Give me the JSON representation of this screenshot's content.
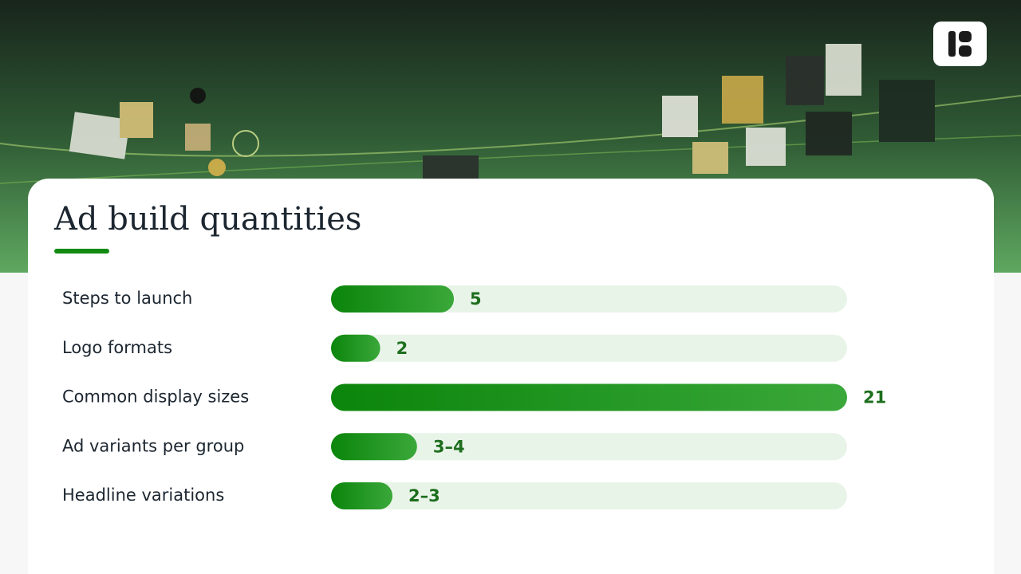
{
  "chart_data": {
    "type": "bar",
    "orientation": "horizontal",
    "title": "Ad build quantities",
    "categories": [
      "Steps to launch",
      "Logo formats",
      "Common display sizes",
      "Ad variants per group",
      "Headline variations"
    ],
    "values": [
      5,
      2,
      21,
      3.5,
      2.5
    ],
    "value_labels": [
      "5",
      "2",
      "21",
      "3–4",
      "2–3"
    ],
    "colors": [
      "#0b850b",
      "#3aa83a"
    ],
    "track_color": "#e9f4e9",
    "xlim": [
      0,
      21
    ]
  }
}
